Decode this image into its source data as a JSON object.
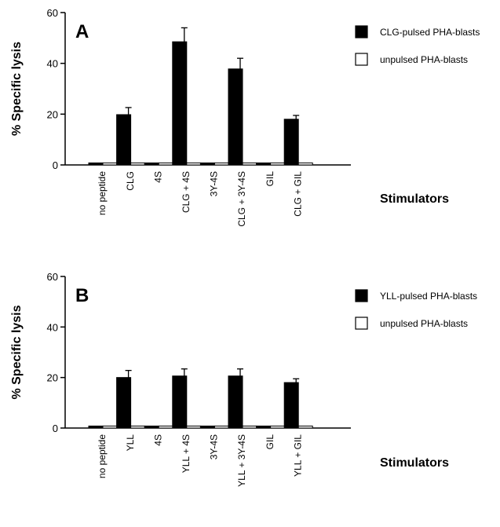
{
  "chart_data": [
    {
      "type": "bar",
      "panel_label": "A",
      "ylabel": "% Specific lysis",
      "xlabel": "Stimulators",
      "ylim": [
        0,
        60
      ],
      "yticks": [
        0,
        20,
        40,
        60
      ],
      "categories": [
        "no peptide",
        "CLG",
        "4S",
        "CLG + 4S",
        "3Y-4S",
        "CLG + 3Y-4S",
        "GIL",
        "CLG + GIL"
      ],
      "series": [
        {
          "name": "CLG-pulsed PHA-blasts",
          "color": "#000000",
          "values": [
            0.8,
            19.8,
            0.8,
            48.5,
            0.8,
            37.8,
            0.8,
            18.0
          ],
          "errors": [
            0,
            2.8,
            0,
            5.5,
            0,
            4.2,
            0,
            1.5
          ]
        },
        {
          "name": "unpulsed PHA-blasts",
          "color": "#ffffff",
          "values": [
            0.8,
            0.8,
            0.8,
            0.8,
            0.8,
            0.8,
            0.8,
            0.8
          ],
          "errors": [
            0,
            0,
            0,
            0,
            0,
            0,
            0,
            0
          ]
        }
      ]
    },
    {
      "type": "bar",
      "panel_label": "B",
      "ylabel": "% Specific lysis",
      "xlabel": "Stimulators",
      "ylim": [
        0,
        60
      ],
      "yticks": [
        0,
        20,
        40,
        60
      ],
      "categories": [
        "no peptide",
        "YLL",
        "4S",
        "YLL + 4S",
        "3Y-4S",
        "YLL + 3Y-4S",
        "GIL",
        "YLL + GIL"
      ],
      "series": [
        {
          "name": "YLL-pulsed PHA-blasts",
          "color": "#000000",
          "values": [
            0.8,
            20.0,
            0.8,
            20.6,
            0.8,
            20.6,
            0.8,
            18.0
          ],
          "errors": [
            0,
            2.8,
            0,
            2.8,
            0,
            2.8,
            0,
            1.5
          ]
        },
        {
          "name": "unpulsed PHA-blasts",
          "color": "#ffffff",
          "values": [
            0.8,
            0.8,
            0.8,
            0.8,
            0.8,
            0.8,
            0.8,
            0.8
          ],
          "errors": [
            0,
            0,
            0,
            0,
            0,
            0,
            0,
            0
          ]
        }
      ]
    }
  ]
}
